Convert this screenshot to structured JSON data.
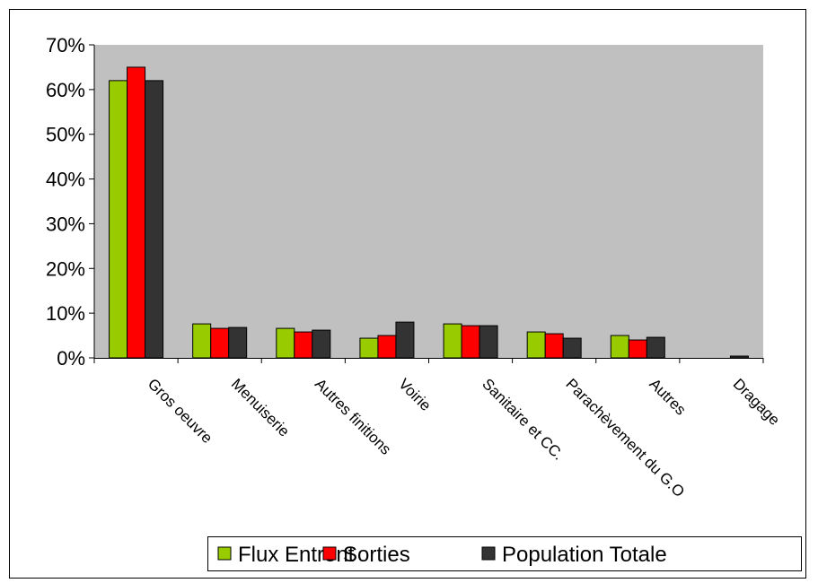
{
  "chart_data": {
    "type": "bar",
    "categories": [
      "Gros oeuvre",
      "Menuiserie",
      "Autres finitions",
      "Voirie",
      "Sanitaire et CC.",
      "Parachèvement du G.O",
      "Autres",
      "Dragage"
    ],
    "series": [
      {
        "name": "Flux Entrent",
        "color": "#99cc00",
        "values": [
          62,
          7.6,
          6.6,
          4.4,
          7.6,
          5.8,
          5.0,
          0
        ]
      },
      {
        "name": "Sorties",
        "color": "#ff0000",
        "values": [
          65,
          6.6,
          5.8,
          5.0,
          7.2,
          5.4,
          4.0,
          0
        ]
      },
      {
        "name": "Population Totale",
        "color": "#333333",
        "values": [
          62,
          6.8,
          6.2,
          8.0,
          7.2,
          4.4,
          4.6,
          0.4
        ]
      }
    ],
    "ylim": [
      0,
      70
    ],
    "yticks": [
      {
        "value": 0,
        "label": "0%"
      },
      {
        "value": 10,
        "label": "10%"
      },
      {
        "value": 20,
        "label": "20%"
      },
      {
        "value": 30,
        "label": "30%"
      },
      {
        "value": 40,
        "label": "40%"
      },
      {
        "value": 50,
        "label": "50%"
      },
      {
        "value": 60,
        "label": "60%"
      },
      {
        "value": 70,
        "label": "70%"
      }
    ],
    "plot_background": "#c0c0c0"
  }
}
